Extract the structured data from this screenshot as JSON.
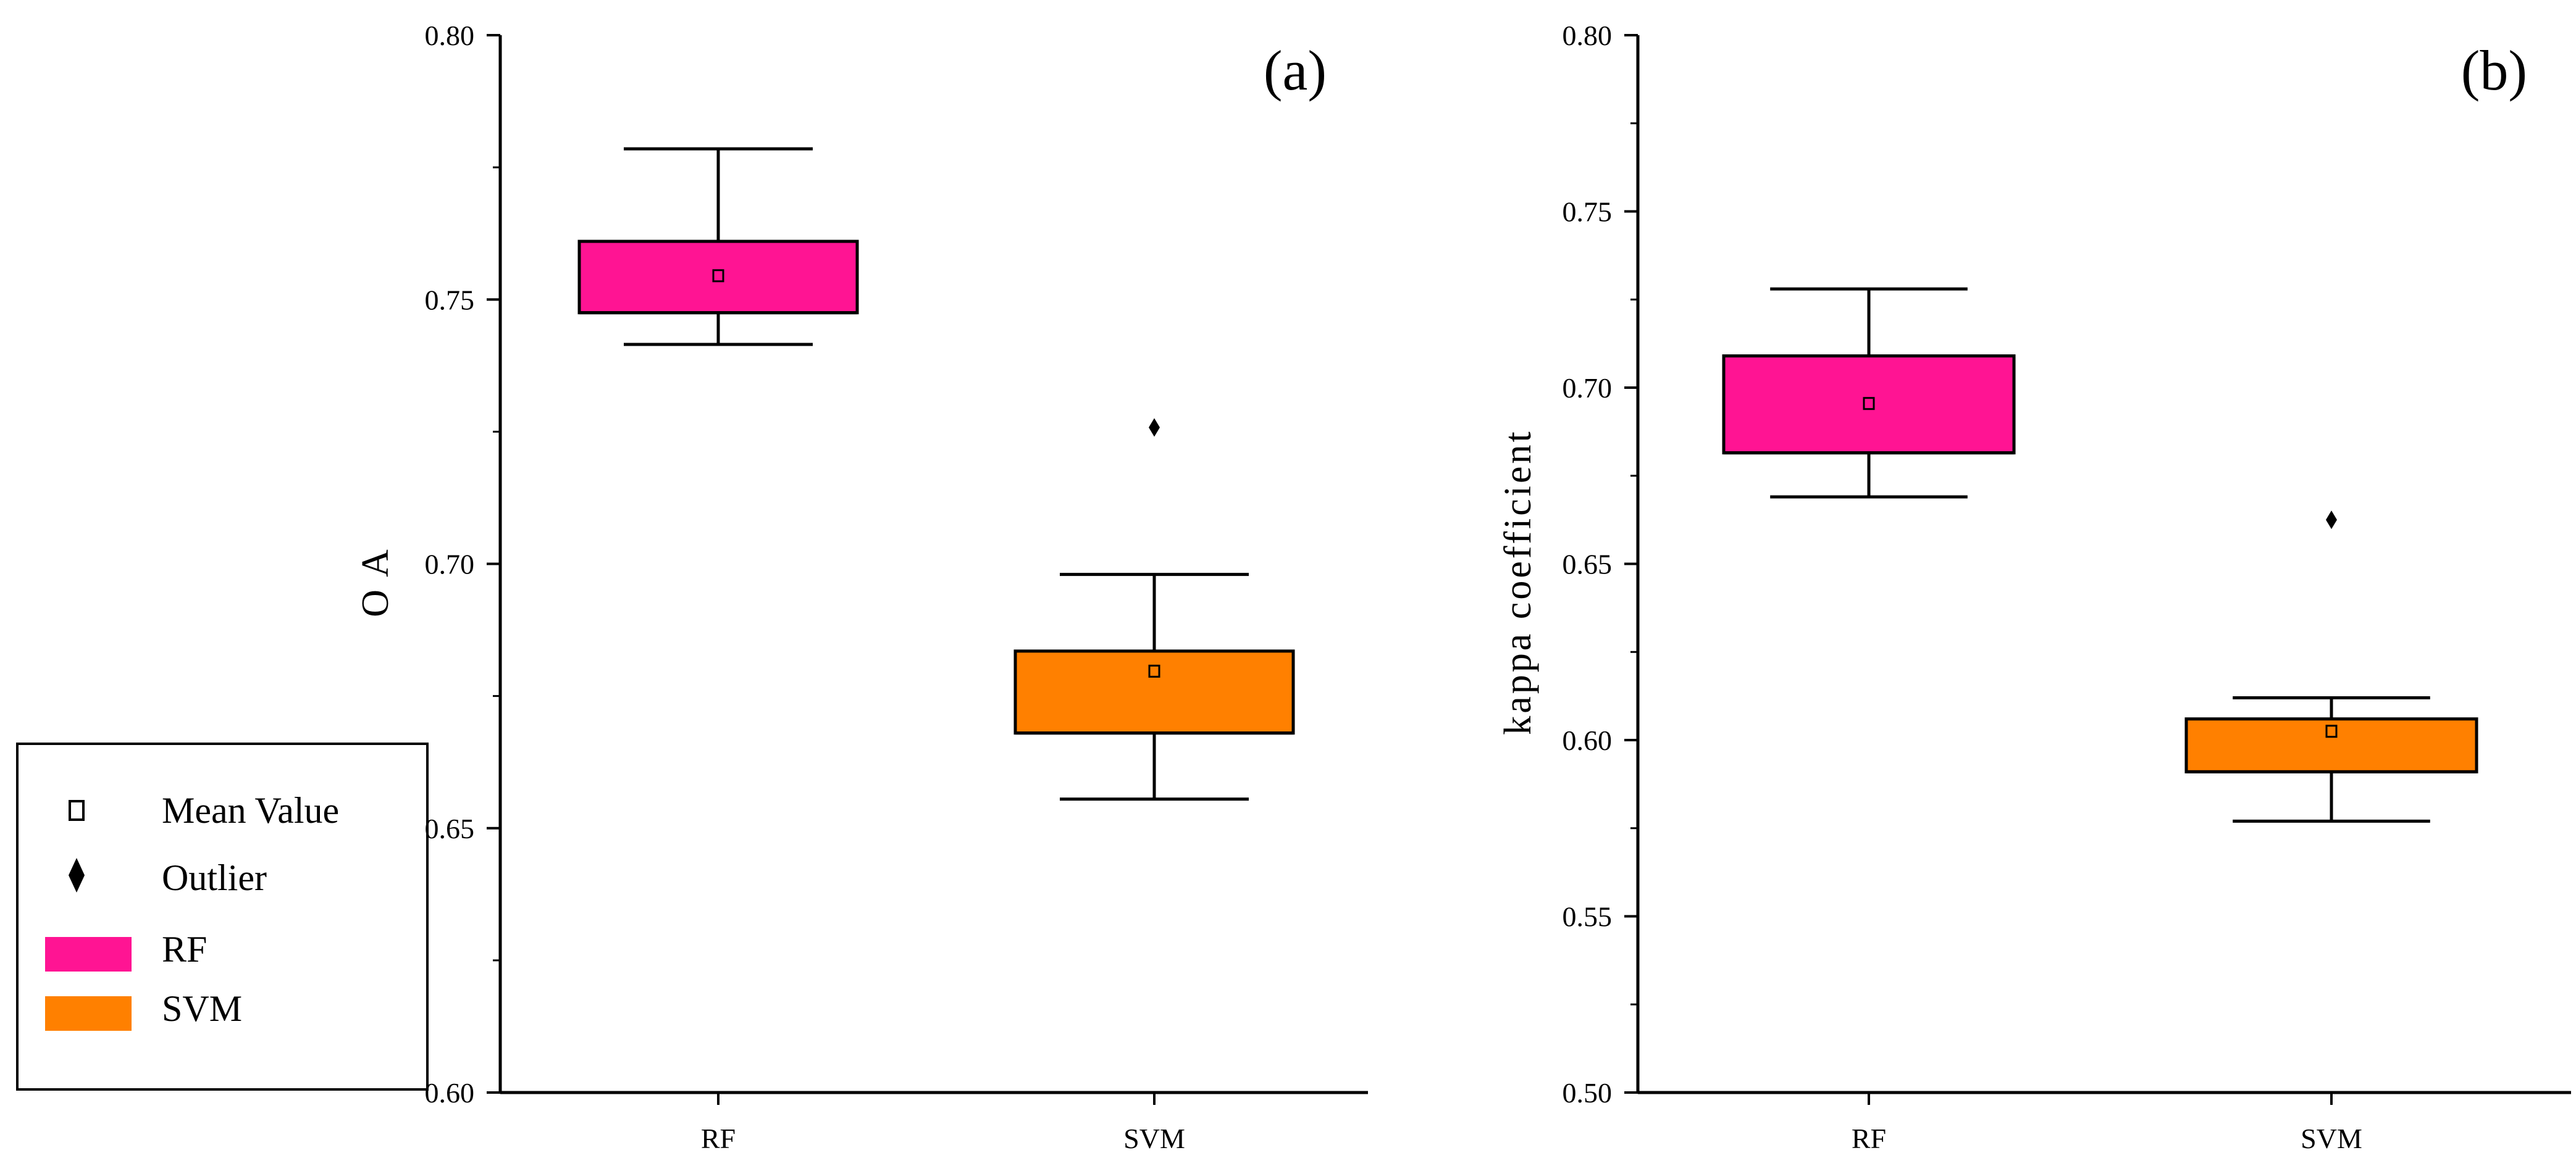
{
  "legend": {
    "entries": [
      {
        "symbol": "mean-square",
        "label": "Mean Value"
      },
      {
        "symbol": "outlier-diamond",
        "label": "Outlier"
      },
      {
        "symbol": "swatch",
        "label": "RF",
        "color": "#ff1493"
      },
      {
        "symbol": "swatch",
        "label": "SVM",
        "color": "#ff8000"
      }
    ]
  },
  "chart_data": [
    {
      "type": "box",
      "panel": "(a)",
      "title": "",
      "xlabel": "",
      "ylabel": "O A",
      "ylim": [
        0.6,
        0.8
      ],
      "yticks": [
        0.6,
        0.65,
        0.7,
        0.75,
        0.8
      ],
      "ytick_labels": [
        "0.60",
        "0.65",
        "0.70",
        "0.75",
        "0.80"
      ],
      "categories": [
        "RF",
        "SVM"
      ],
      "boxes": [
        {
          "name": "RF",
          "color": "#ff1493",
          "whisker_low": 0.7415,
          "q1": 0.7475,
          "median": 0.7475,
          "q3": 0.761,
          "whisker_high": 0.7785,
          "mean": 0.7545,
          "outliers": []
        },
        {
          "name": "SVM",
          "color": "#ff8000",
          "whisker_low": 0.6555,
          "q1": 0.668,
          "median": 0.668,
          "q3": 0.6835,
          "whisker_high": 0.698,
          "mean": 0.6797,
          "outliers": [
            0.7258
          ]
        }
      ]
    },
    {
      "type": "box",
      "panel": "(b)",
      "title": "",
      "xlabel": "",
      "ylabel": "kappa coefficient",
      "ylim": [
        0.5,
        0.8
      ],
      "yticks": [
        0.5,
        0.55,
        0.6,
        0.65,
        0.7,
        0.75,
        0.8
      ],
      "ytick_labels": [
        "0.50",
        "0.55",
        "0.60",
        "0.65",
        "0.70",
        "0.75",
        "0.80"
      ],
      "categories": [
        "RF",
        "SVM"
      ],
      "boxes": [
        {
          "name": "RF",
          "color": "#ff1493",
          "whisker_low": 0.669,
          "q1": 0.6815,
          "median": 0.6815,
          "q3": 0.709,
          "whisker_high": 0.728,
          "mean": 0.6955,
          "outliers": []
        },
        {
          "name": "SVM",
          "color": "#ff8000",
          "whisker_low": 0.577,
          "q1": 0.591,
          "median": 0.591,
          "q3": 0.606,
          "whisker_high": 0.612,
          "mean": 0.6025,
          "outliers": [
            0.6625
          ]
        }
      ]
    }
  ]
}
